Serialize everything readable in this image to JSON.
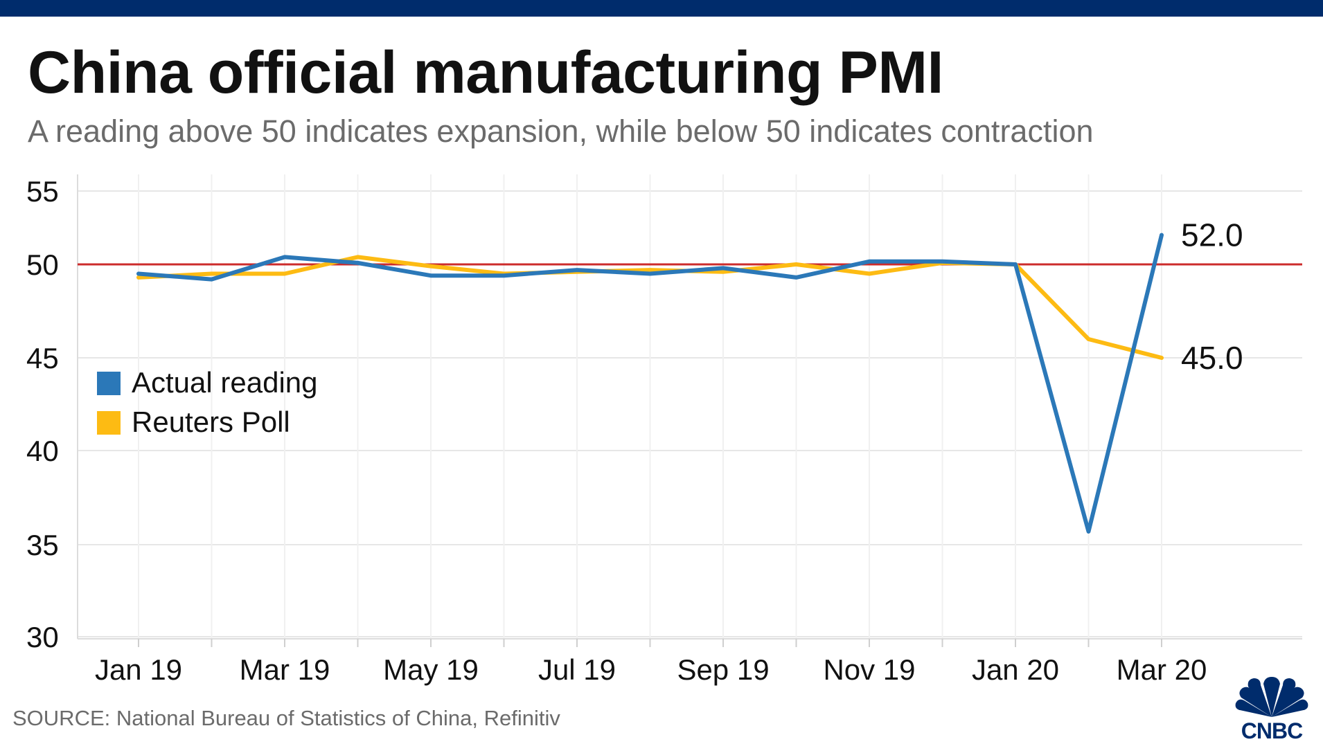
{
  "header": {
    "title": "China official manufacturing PMI",
    "subtitle": "A reading above 50 indicates expansion, while below 50 indicates contraction"
  },
  "footer": {
    "source": "SOURCE: National Bureau of Statistics of China, Refinitiv",
    "logo_text": "CNBC"
  },
  "colors": {
    "header_bar": "#002c6c",
    "actual": "#2b78b8",
    "poll": "#fdbb13",
    "reference_line": "#cc2b2b",
    "grid": "#e6e6e6",
    "text": "#111111"
  },
  "chart_data": {
    "type": "line",
    "x": [
      "Jan 19",
      "Feb 19",
      "Mar 19",
      "Apr 19",
      "May 19",
      "Jun 19",
      "Jul 19",
      "Aug 19",
      "Sep 19",
      "Oct 19",
      "Nov 19",
      "Dec 19",
      "Jan 20",
      "Feb 20",
      "Mar 20"
    ],
    "x_tick_labels": [
      "Jan 19",
      "Mar 19",
      "May 19",
      "Jul 19",
      "Sep 19",
      "Nov 19",
      "Jan 20",
      "Mar 20"
    ],
    "series": [
      {
        "name": "Actual reading",
        "color": "#2b78b8",
        "values": [
          49.5,
          49.2,
          50.5,
          50.1,
          49.4,
          49.4,
          49.7,
          49.5,
          49.8,
          49.3,
          50.2,
          50.2,
          50.0,
          35.7,
          52.0
        ],
        "end_label": "52.0"
      },
      {
        "name": "Reuters Poll",
        "color": "#fdbb13",
        "values": [
          49.3,
          49.5,
          49.5,
          50.5,
          49.9,
          49.5,
          49.6,
          49.7,
          49.6,
          50.0,
          49.5,
          50.1,
          50.0,
          46.0,
          45.0
        ],
        "end_label": "45.0"
      }
    ],
    "reference_line": {
      "value": 50
    },
    "y_ticks": [
      55,
      50,
      45,
      40,
      35,
      30
    ],
    "ylim": [
      30,
      55
    ],
    "grid": true,
    "legend_position": "left-middle",
    "title": "China official manufacturing PMI",
    "subtitle": "A reading above 50 indicates expansion, while below 50 indicates contraction",
    "xlabel": "",
    "ylabel": ""
  }
}
